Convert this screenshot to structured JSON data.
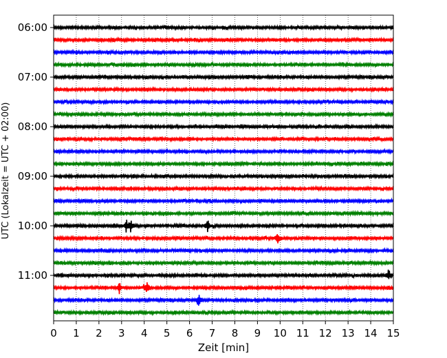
{
  "chart_data": {
    "type": "line",
    "title": "",
    "xlabel": "Zeit  [min]",
    "ylabel": "UTC (Lokalzeit = UTC + 02:00)",
    "xlim": [
      0,
      15
    ],
    "x_ticks": [
      "0",
      "1",
      "2",
      "3",
      "4",
      "5",
      "6",
      "7",
      "8",
      "9",
      "10",
      "11",
      "12",
      "13",
      "14",
      "15"
    ],
    "y_tick_labels": [
      "06:00",
      "07:00",
      "08:00",
      "09:00",
      "10:00",
      "11:00"
    ],
    "grid": "vertical dotted at each minute",
    "trace_interval_min": 15,
    "colors": [
      "#000000",
      "#ff0000",
      "#0000ff",
      "#008000"
    ],
    "traces": [
      {
        "start": "06:00",
        "color": "#000000"
      },
      {
        "start": "06:15",
        "color": "#ff0000"
      },
      {
        "start": "06:30",
        "color": "#0000ff"
      },
      {
        "start": "06:45",
        "color": "#008000"
      },
      {
        "start": "07:00",
        "color": "#000000"
      },
      {
        "start": "07:15",
        "color": "#ff0000"
      },
      {
        "start": "07:30",
        "color": "#0000ff"
      },
      {
        "start": "07:45",
        "color": "#008000"
      },
      {
        "start": "08:00",
        "color": "#000000"
      },
      {
        "start": "08:15",
        "color": "#ff0000"
      },
      {
        "start": "08:30",
        "color": "#0000ff"
      },
      {
        "start": "08:45",
        "color": "#008000"
      },
      {
        "start": "09:00",
        "color": "#000000"
      },
      {
        "start": "09:15",
        "color": "#ff0000"
      },
      {
        "start": "09:30",
        "color": "#0000ff"
      },
      {
        "start": "09:45",
        "color": "#008000"
      },
      {
        "start": "10:00",
        "color": "#000000",
        "events_min": [
          3.2,
          3.4,
          6.8
        ]
      },
      {
        "start": "10:15",
        "color": "#ff0000",
        "events_min": [
          9.9
        ]
      },
      {
        "start": "10:30",
        "color": "#0000ff"
      },
      {
        "start": "10:45",
        "color": "#008000"
      },
      {
        "start": "11:00",
        "color": "#000000",
        "events_min": [
          14.8
        ]
      },
      {
        "start": "11:15",
        "color": "#ff0000",
        "events_min": [
          2.9,
          4.1
        ]
      },
      {
        "start": "11:30",
        "color": "#0000ff",
        "events_min": [
          6.4
        ]
      },
      {
        "start": "11:45",
        "color": "#008000"
      }
    ]
  }
}
